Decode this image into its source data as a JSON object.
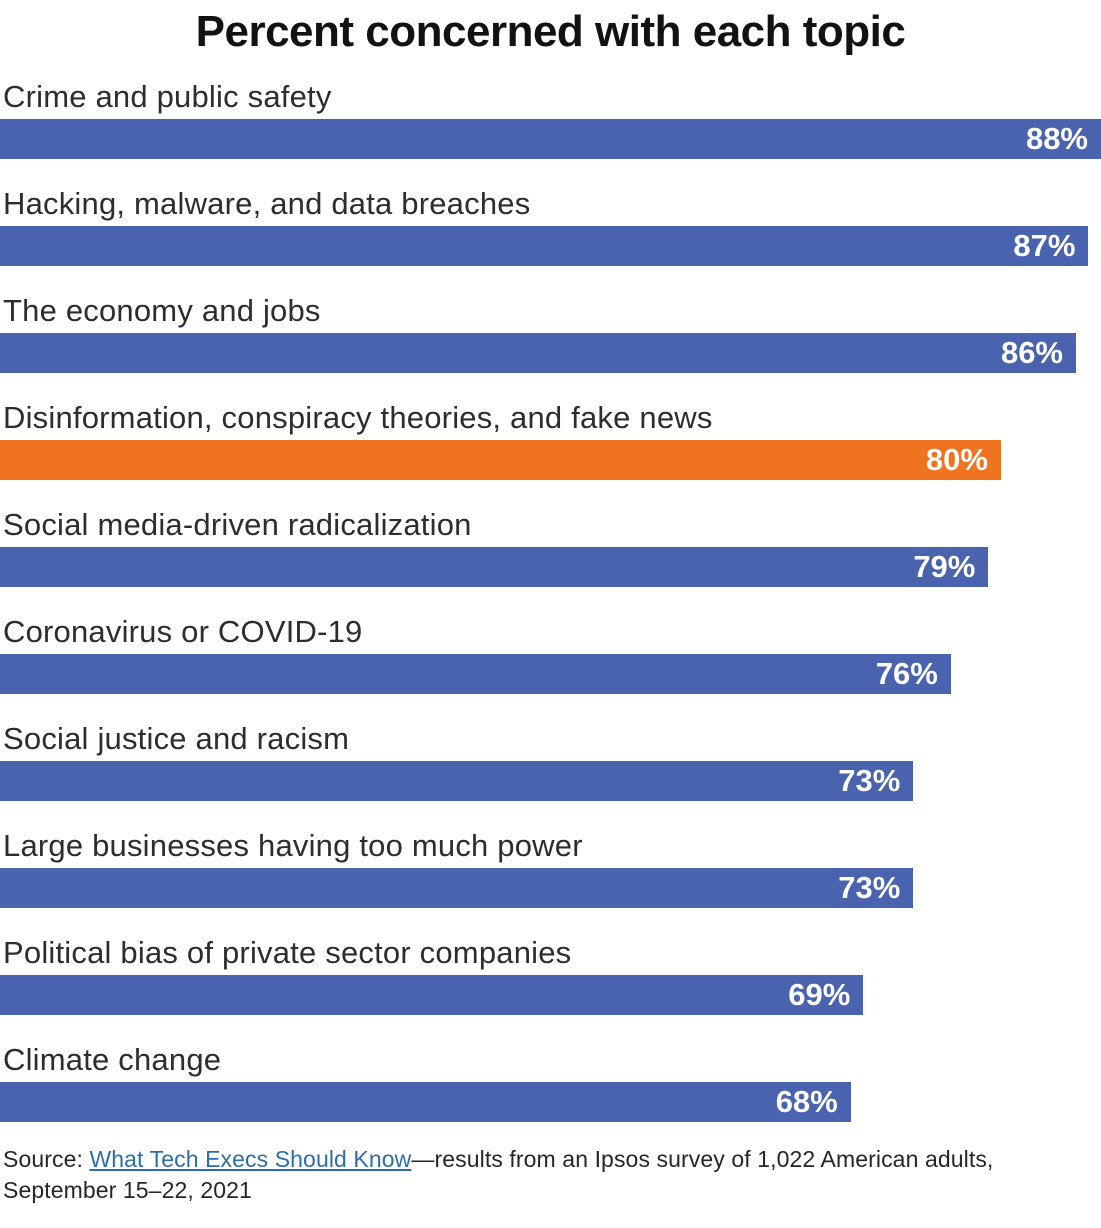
{
  "chart_data": {
    "type": "bar",
    "orientation": "horizontal",
    "title": "Percent concerned with each topic",
    "categories": [
      "Crime and public safety",
      "Hacking, malware, and data breaches",
      "The economy and jobs",
      "Disinformation, conspiracy theories, and fake news",
      "Social media-driven radicalization",
      "Coronavirus or COVID-19",
      "Social justice and racism",
      "Large businesses having too much power",
      "Political bias of private sector companies",
      "Climate change"
    ],
    "values": [
      88,
      87,
      86,
      80,
      79,
      76,
      73,
      73,
      69,
      68
    ],
    "bar_labels": [
      "88%",
      "87%",
      "86%",
      "80%",
      "79%",
      "76%",
      "73%",
      "73%",
      "69%",
      "68%"
    ],
    "value_suffix": "%",
    "xlim": [
      0,
      88
    ],
    "highlight_index": 3,
    "bar_color": "#4A63AE",
    "highlight_color": "#F0731F",
    "value_label_color": "#FFFFFF",
    "grid": false,
    "legend": "none"
  },
  "source": {
    "prefix": "Source: ",
    "link_text": "What Tech Execs Should Know",
    "suffix": "—results from an Ipsos survey of 1,022 American adults, September 15–22, 2021",
    "link_color": "#2F6DA8"
  }
}
